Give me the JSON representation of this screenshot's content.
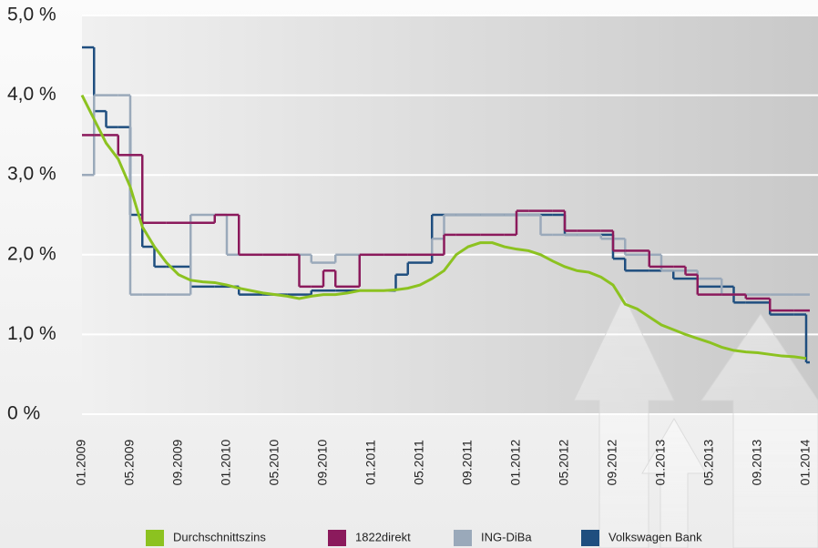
{
  "chart_data": {
    "type": "line",
    "step_series": [
      "1822direkt",
      "ING-DiBa",
      "Volkswagen Bank"
    ],
    "categories": [
      "01.2009",
      null,
      null,
      null,
      "05.2009",
      null,
      null,
      null,
      "09.2009",
      null,
      null,
      null,
      "01.2010",
      null,
      null,
      null,
      "05.2010",
      null,
      null,
      null,
      "09.2010",
      null,
      null,
      null,
      "01.2011",
      null,
      null,
      null,
      "05.2011",
      null,
      null,
      null,
      "09.2011",
      null,
      null,
      null,
      "01.2012",
      null,
      null,
      null,
      "05.2012",
      null,
      null,
      null,
      "09.2012",
      null,
      null,
      null,
      "01.2013",
      null,
      null,
      null,
      "05.2013",
      null,
      null,
      null,
      "09.2013",
      null,
      null,
      null,
      "01.2014"
    ],
    "series": [
      {
        "name": "Durchschnittszins",
        "color": "#8cc220",
        "values": [
          4.0,
          3.7,
          3.4,
          3.2,
          2.85,
          2.35,
          2.1,
          1.9,
          1.75,
          1.68,
          1.66,
          1.65,
          1.62,
          1.58,
          1.55,
          1.52,
          1.5,
          1.48,
          1.45,
          1.48,
          1.5,
          1.5,
          1.52,
          1.55,
          1.55,
          1.55,
          1.56,
          1.58,
          1.62,
          1.7,
          1.8,
          2.0,
          2.1,
          2.15,
          2.15,
          2.1,
          2.07,
          2.05,
          2.0,
          1.92,
          1.85,
          1.8,
          1.78,
          1.72,
          1.62,
          1.38,
          1.32,
          1.22,
          1.12,
          1.06,
          1.0,
          0.95,
          0.9,
          0.84,
          0.8,
          0.78,
          0.77,
          0.75,
          0.73,
          0.72,
          0.7
        ]
      },
      {
        "name": "1822direkt",
        "color": "#8b1a5c",
        "values": [
          3.5,
          3.5,
          3.5,
          3.25,
          3.25,
          2.4,
          2.4,
          2.4,
          2.4,
          2.4,
          2.4,
          2.5,
          2.5,
          2.0,
          2.0,
          2.0,
          2.0,
          2.0,
          1.6,
          1.6,
          1.8,
          1.6,
          1.6,
          2.0,
          2.0,
          2.0,
          2.0,
          2.0,
          2.0,
          2.0,
          2.25,
          2.25,
          2.25,
          2.25,
          2.25,
          2.25,
          2.55,
          2.55,
          2.55,
          2.55,
          2.3,
          2.3,
          2.3,
          2.3,
          2.05,
          2.05,
          2.05,
          1.85,
          1.85,
          1.85,
          1.75,
          1.5,
          1.5,
          1.5,
          1.5,
          1.45,
          1.45,
          1.3,
          1.3,
          1.3,
          1.3
        ]
      },
      {
        "name": "ING-DiBa",
        "color": "#9aa9ba",
        "values": [
          3.0,
          4.0,
          4.0,
          4.0,
          1.5,
          1.5,
          1.5,
          1.5,
          1.5,
          2.5,
          2.5,
          2.5,
          2.0,
          2.0,
          2.0,
          2.0,
          2.0,
          2.0,
          2.0,
          1.9,
          1.9,
          2.0,
          2.0,
          2.0,
          2.0,
          2.0,
          2.0,
          2.0,
          2.0,
          2.2,
          2.5,
          2.5,
          2.5,
          2.5,
          2.5,
          2.5,
          2.5,
          2.5,
          2.25,
          2.25,
          2.25,
          2.25,
          2.25,
          2.2,
          2.2,
          2.0,
          2.0,
          2.0,
          1.8,
          1.8,
          1.8,
          1.7,
          1.7,
          1.5,
          1.5,
          1.5,
          1.5,
          1.5,
          1.5,
          1.5,
          1.5
        ]
      },
      {
        "name": "Volkswagen Bank",
        "color": "#1f4e7f",
        "values": [
          4.6,
          3.8,
          3.6,
          3.6,
          2.5,
          2.1,
          1.85,
          1.85,
          1.85,
          1.6,
          1.6,
          1.6,
          1.6,
          1.5,
          1.5,
          1.5,
          1.5,
          1.5,
          1.5,
          1.55,
          1.55,
          1.55,
          1.55,
          1.55,
          1.55,
          1.55,
          1.75,
          1.9,
          1.9,
          2.5,
          2.5,
          2.5,
          2.5,
          2.5,
          2.5,
          2.5,
          2.5,
          2.5,
          2.5,
          2.5,
          2.25,
          2.25,
          2.25,
          2.25,
          1.95,
          1.8,
          1.8,
          1.8,
          1.8,
          1.7,
          1.7,
          1.6,
          1.6,
          1.6,
          1.4,
          1.4,
          1.4,
          1.25,
          1.25,
          1.25,
          0.65
        ]
      }
    ],
    "ylim": [
      0,
      5
    ],
    "yticks": [
      {
        "value": 0,
        "label": "0 %"
      },
      {
        "value": 1,
        "label": "1,0 %"
      },
      {
        "value": 2,
        "label": "2,0 %"
      },
      {
        "value": 3,
        "label": "3,0 %"
      },
      {
        "value": 4,
        "label": "4,0 %"
      },
      {
        "value": 5,
        "label": "5,0 %"
      }
    ],
    "grid": true,
    "legend": "bottom"
  }
}
